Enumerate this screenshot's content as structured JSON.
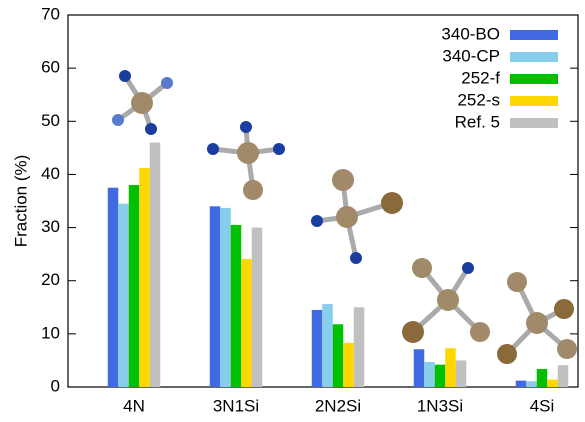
{
  "chart_data": {
    "type": "bar",
    "y_label": "Fraction (%)",
    "categories": [
      "4N",
      "3N1Si",
      "2N2Si",
      "1N3Si",
      "4Si"
    ],
    "series": [
      {
        "name": "340-BO",
        "color": "#4169e1",
        "values": [
          37.5,
          34,
          14.5,
          7.1,
          1.2
        ]
      },
      {
        "name": "340-CP",
        "color": "#87ceeb",
        "values": [
          34.5,
          33.7,
          15.6,
          4.7,
          1.1
        ]
      },
      {
        "name": "252-f",
        "color": "#00c000",
        "values": [
          38,
          30.5,
          11.8,
          4.2,
          3.4
        ]
      },
      {
        "name": "252-s",
        "color": "#ffd700",
        "values": [
          41.2,
          24.1,
          8.3,
          7.3,
          1.4
        ]
      },
      {
        "name": "Ref. 5",
        "color": "#c0c0c0",
        "values": [
          46,
          30,
          15,
          5,
          4.1
        ]
      }
    ],
    "ylim": [
      0,
      70
    ],
    "yticks": [
      0,
      10,
      20,
      30,
      40,
      50,
      60,
      70
    ],
    "legend": "upper-right"
  }
}
